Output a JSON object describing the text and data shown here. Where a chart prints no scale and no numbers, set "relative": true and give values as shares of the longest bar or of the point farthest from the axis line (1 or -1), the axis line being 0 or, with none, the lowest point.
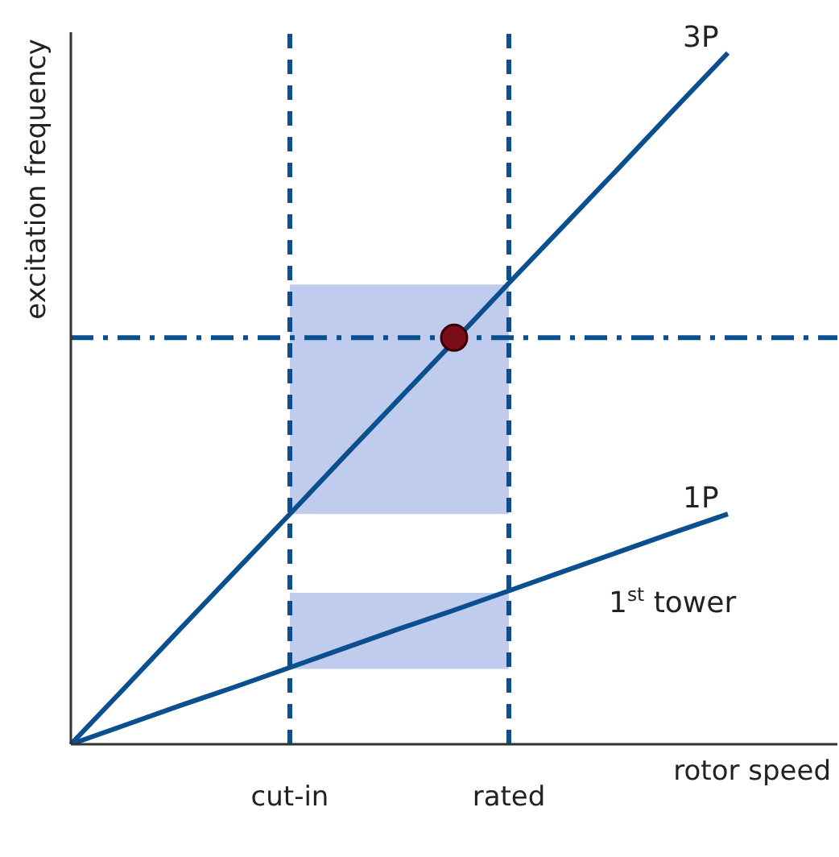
{
  "chart_data": {
    "type": "line",
    "relative": true,
    "xlabel": "rotor speed",
    "ylabel": "excitation frequency",
    "categories": [
      null,
      null,
      null,
      null,
      "cut-in",
      null,
      null,
      null,
      "rated",
      null,
      null,
      null,
      null,
      null,
      null
    ],
    "ylim": [
      0,
      1.03
    ],
    "series": [
      {
        "name": "3P",
        "color": "#0b4f8f",
        "values": [
          0,
          0.083,
          0.167,
          0.25,
          0.333,
          0.417,
          0.5,
          0.583,
          0.667,
          0.75,
          0.833,
          0.917,
          1,
          null,
          null
        ]
      },
      {
        "name": "1P",
        "color": "#0b4f8f",
        "values": [
          0,
          0.028,
          0.056,
          0.083,
          0.111,
          0.139,
          0.167,
          0.194,
          0.222,
          0.25,
          0.278,
          0.306,
          0.333,
          null,
          null
        ]
      },
      {
        "type": "scatter",
        "color": "#7a0f1a",
        "marker": "circle",
        "values": [
          null,
          null,
          null,
          null,
          null,
          null,
          null,
          0.588,
          null,
          null,
          null,
          null,
          null,
          null,
          null
        ]
      }
    ],
    "ref_lines": [
      {
        "axis": "x",
        "value": "cut-in",
        "color": "#0b4f8f",
        "line_style": "dashed"
      },
      {
        "axis": "x",
        "value": "rated",
        "color": "#0b4f8f",
        "line_style": "dashed"
      },
      {
        "axis": "y",
        "value": 0.588,
        "color": "#0b4f8f",
        "line_style": "dashdot"
      }
    ],
    "bands": [
      {
        "axis": "y",
        "from": 0.333,
        "to": 0.665,
        "color": "#a9bbe8"
      },
      {
        "axis": "y",
        "from": 0.109,
        "to": 0.219,
        "color": "#a9bbe8"
      }
    ],
    "annotations": [
      "1$^{st}$ tower"
    ],
    "marker": "none",
    "line_style": "solid"
  }
}
